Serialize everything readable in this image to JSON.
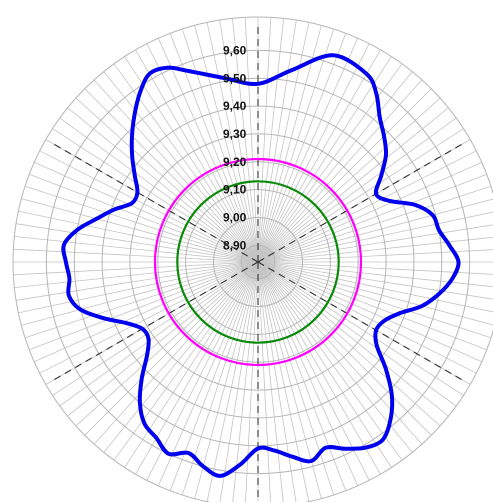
{
  "chart_data": {
    "type": "polar",
    "title": "",
    "radial_ticks": [
      "8,90",
      "9,00",
      "9,10",
      "9,20",
      "9,30",
      "9,40",
      "9,50",
      "9,60"
    ],
    "radial_values": [
      8.9,
      9.0,
      9.1,
      9.2,
      9.3,
      9.4,
      9.5,
      9.6
    ],
    "rlim": [
      8.84,
      9.72
    ],
    "grid": true,
    "angular_grid_lines": 120,
    "reference_lines": [
      {
        "value": 9.13,
        "color": "#0a8a0a"
      },
      {
        "value": 9.21,
        "color": "#ff00ff"
      }
    ],
    "dashed_axes_deg": [
      90,
      30,
      150,
      210,
      270,
      330
    ],
    "series": [
      {
        "color": "#0000ee",
        "theta_deg": [
          90,
          80,
          70,
          60,
          55,
          50,
          45,
          40,
          35,
          30,
          25,
          20,
          15,
          10,
          5,
          0,
          -5,
          -10,
          -15,
          -20,
          -25,
          -30,
          -35,
          -40,
          -45,
          -50,
          -55,
          -60,
          -65,
          -70,
          -75,
          -80,
          -85,
          -90,
          -95,
          -100,
          -105,
          -110,
          -115,
          -120,
          -125,
          -130,
          -135,
          -140,
          -145,
          -150,
          -155,
          -160,
          -165,
          -170,
          -175,
          180,
          175,
          170,
          165,
          160,
          155,
          150,
          145,
          140,
          135,
          130,
          125,
          120,
          115,
          110,
          100
        ],
        "r_values": [
          9.48,
          9.54,
          9.63,
          9.62,
          9.58,
          9.52,
          9.48,
          9.44,
          9.38,
          9.33,
          9.36,
          9.44,
          9.49,
          9.5,
          9.53,
          9.56,
          9.54,
          9.5,
          9.45,
          9.38,
          9.34,
          9.33,
          9.36,
          9.44,
          9.52,
          9.58,
          9.62,
          9.61,
          9.58,
          9.55,
          9.58,
          9.55,
          9.52,
          9.51,
          9.57,
          9.62,
          9.6,
          9.57,
          9.6,
          9.57,
          9.55,
          9.5,
          9.43,
          9.36,
          9.32,
          9.32,
          9.36,
          9.43,
          9.5,
          9.53,
          9.52,
          9.53,
          9.54,
          9.5,
          9.44,
          9.39,
          9.34,
          9.34,
          9.38,
          9.43,
          9.48,
          9.53,
          9.58,
          9.62,
          9.61,
          9.57,
          9.51
        ]
      }
    ]
  }
}
